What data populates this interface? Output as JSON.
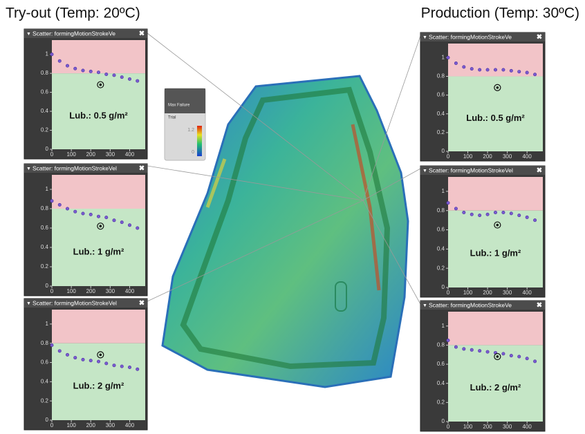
{
  "headers": {
    "left": "Try-out (Temp: 20ºC)",
    "right": "Production (Temp: 30ºC)"
  },
  "color_legend": {
    "title": "Max Failure",
    "subtitle": "Trial",
    "max": 1.2,
    "min": 0
  },
  "chart_data": [
    {
      "type": "scatter",
      "title": "Scatter: formingMotionStrokeVe",
      "annotation": "Lub.: 0.5 g/m²",
      "color": "#7a5bd0",
      "limit": 0.8,
      "x": [
        0,
        40,
        80,
        120,
        160,
        200,
        240,
        280,
        320,
        360,
        400,
        440
      ],
      "values": [
        1.0,
        0.93,
        0.88,
        0.85,
        0.83,
        0.82,
        0.81,
        0.79,
        0.78,
        0.76,
        0.74,
        0.72
      ],
      "target": [
        250,
        0.68
      ],
      "xlim": [
        0,
        480
      ],
      "ylim": [
        0,
        1.15
      ],
      "xticks": [
        0,
        100,
        200,
        300,
        400
      ],
      "yticks": [
        0,
        0.2,
        0.4,
        0.6,
        0.8,
        1
      ]
    },
    {
      "type": "scatter",
      "title": "Scatter: formingMotionStrokeVel",
      "annotation": "Lub.: 1 g/m²",
      "color": "#7a5bd0",
      "limit": 0.8,
      "x": [
        0,
        40,
        80,
        120,
        160,
        200,
        240,
        280,
        320,
        360,
        400,
        440
      ],
      "values": [
        0.88,
        0.84,
        0.8,
        0.77,
        0.75,
        0.74,
        0.72,
        0.71,
        0.68,
        0.66,
        0.63,
        0.6
      ],
      "target": [
        250,
        0.62
      ],
      "xlim": [
        0,
        480
      ],
      "ylim": [
        0,
        1.15
      ],
      "xticks": [
        0,
        100,
        200,
        300,
        400
      ],
      "yticks": [
        0,
        0.2,
        0.4,
        0.6,
        0.8,
        1
      ]
    },
    {
      "type": "scatter",
      "title": "Scatter: formingMotionStrokeVel",
      "annotation": "Lub.: 2 g/m²",
      "color": "#7a5bd0",
      "limit": 0.8,
      "x": [
        0,
        40,
        80,
        120,
        160,
        200,
        240,
        280,
        320,
        360,
        400,
        440
      ],
      "values": [
        0.78,
        0.72,
        0.68,
        0.65,
        0.63,
        0.62,
        0.61,
        0.59,
        0.57,
        0.56,
        0.55,
        0.53
      ],
      "target": [
        250,
        0.68
      ],
      "xlim": [
        0,
        480
      ],
      "ylim": [
        0,
        1.15
      ],
      "xticks": [
        0,
        100,
        200,
        300,
        400
      ],
      "yticks": [
        0,
        0.2,
        0.4,
        0.6,
        0.8,
        1
      ]
    },
    {
      "type": "scatter",
      "title": "Scatter: formingMotionStrokeVe",
      "annotation": "Lub.: 0.5 g/m²",
      "color": "#7a5bd0",
      "limit": 0.8,
      "x": [
        0,
        40,
        80,
        120,
        160,
        200,
        240,
        280,
        320,
        360,
        400,
        440
      ],
      "values": [
        1.0,
        0.94,
        0.9,
        0.88,
        0.87,
        0.87,
        0.87,
        0.87,
        0.86,
        0.85,
        0.84,
        0.82
      ],
      "target": [
        250,
        0.68
      ],
      "xlim": [
        0,
        480
      ],
      "ylim": [
        0,
        1.15
      ],
      "xticks": [
        0,
        100,
        200,
        300,
        400
      ],
      "yticks": [
        0,
        0.2,
        0.4,
        0.6,
        0.8,
        1
      ]
    },
    {
      "type": "scatter",
      "title": "Scatter: formingMotionStrokeVel",
      "annotation": "Lub.: 1 g/m²",
      "color": "#7a5bd0",
      "limit": 0.8,
      "x": [
        0,
        40,
        80,
        120,
        160,
        200,
        240,
        280,
        320,
        360,
        400,
        440
      ],
      "values": [
        0.88,
        0.82,
        0.78,
        0.76,
        0.75,
        0.76,
        0.78,
        0.78,
        0.77,
        0.75,
        0.73,
        0.7
      ],
      "target": [
        250,
        0.65
      ],
      "xlim": [
        0,
        480
      ],
      "ylim": [
        0,
        1.15
      ],
      "xticks": [
        0,
        100,
        200,
        300,
        400
      ],
      "yticks": [
        0,
        0.2,
        0.4,
        0.6,
        0.8,
        1
      ]
    },
    {
      "type": "scatter",
      "title": "Scatter: formingMotionStrokeVe",
      "annotation": "Lub.: 2 g/m²",
      "color": "#7a5bd0",
      "limit": 0.8,
      "x": [
        0,
        40,
        80,
        120,
        160,
        200,
        240,
        280,
        320,
        360,
        400,
        440
      ],
      "values": [
        0.85,
        0.78,
        0.76,
        0.75,
        0.74,
        0.73,
        0.72,
        0.71,
        0.69,
        0.68,
        0.66,
        0.63
      ],
      "target": [
        250,
        0.68
      ],
      "xlim": [
        0,
        480
      ],
      "ylim": [
        0,
        1.15
      ],
      "xticks": [
        0,
        100,
        200,
        300,
        400
      ],
      "yticks": [
        0,
        0.2,
        0.4,
        0.6,
        0.8,
        1
      ]
    }
  ]
}
